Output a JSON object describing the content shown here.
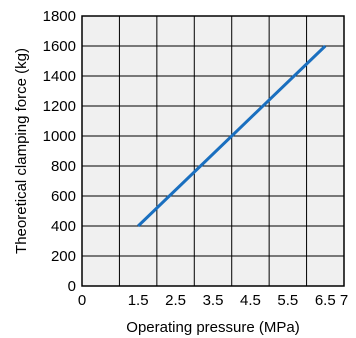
{
  "chart_data": {
    "type": "line",
    "title": "",
    "xlabel": "Operating pressure (MPa)",
    "ylabel": "Theoretical clamping force (kg)",
    "xlim": [
      0,
      7
    ],
    "ylim": [
      0,
      1800
    ],
    "x_ticks": [
      0,
      1.5,
      2.5,
      3.5,
      4.5,
      5.5,
      6.5,
      7
    ],
    "x_tick_labels": [
      "0",
      "1.5",
      "2.5",
      "3.5",
      "4.5",
      "5.5",
      "6.5",
      "7"
    ],
    "y_ticks": [
      0,
      200,
      400,
      600,
      800,
      1000,
      1200,
      1400,
      1600,
      1800
    ],
    "y_tick_labels": [
      "0",
      "200",
      "400",
      "600",
      "800",
      "1000",
      "1200",
      "1400",
      "1600",
      "1800"
    ],
    "x_gridlines": [
      0,
      1,
      2,
      3,
      4,
      5,
      6,
      7
    ],
    "grid": true,
    "series": [
      {
        "color": "#1a6fbf",
        "x": [
          1.5,
          6.5
        ],
        "y": [
          400,
          1600
        ]
      }
    ],
    "colors": {
      "background": "#f0f0f0",
      "grid": "#000000",
      "line": "#1a6fbf"
    }
  }
}
